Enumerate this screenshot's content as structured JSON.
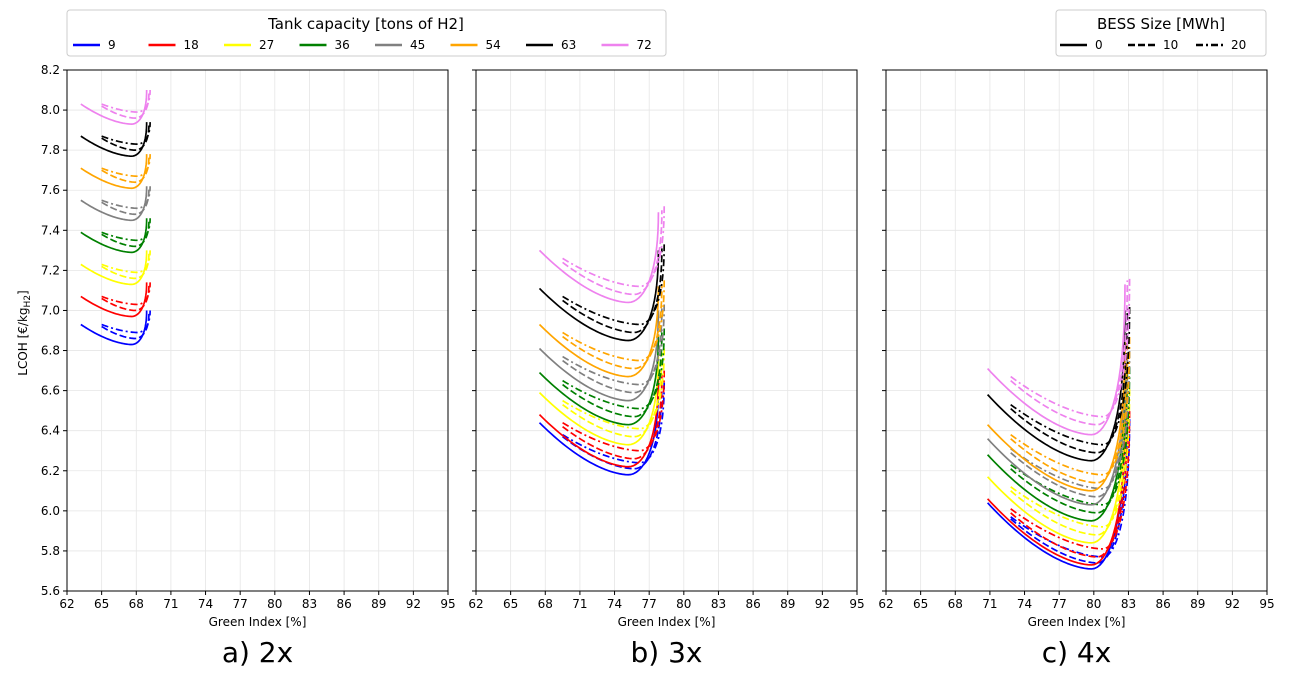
{
  "colors": [
    "#0000ff",
    "#ff0000",
    "#ffff00",
    "#008000",
    "#808080",
    "#ffa500",
    "#000000",
    "#ee82ee"
  ],
  "legend_tank": {
    "title": "Tank capacity [tons of H2]",
    "entries": [
      "9",
      "18",
      "27",
      "36",
      "45",
      "54",
      "63",
      "72"
    ]
  },
  "legend_bess": {
    "title": "BESS Size [MWh]",
    "entries": [
      {
        "label": "0",
        "style": "solid"
      },
      {
        "label": "10",
        "style": "dashed"
      },
      {
        "label": "20",
        "style": "dashdot"
      }
    ]
  },
  "chart_data": [
    {
      "type": "line",
      "panel_label": "a) 2x",
      "xlabel": "Green Index [%]",
      "ylabel": "LCOH [€/kg",
      "ylabel_sub": "H2",
      "ylabel_end": "]",
      "xlim": [
        62,
        95
      ],
      "ylim": [
        5.6,
        8.2
      ],
      "xticks": [
        "62",
        "65",
        "68",
        "71",
        "74",
        "77",
        "80",
        "83",
        "86",
        "89",
        "92",
        "95"
      ],
      "yticks": [
        "5.6",
        "5.8",
        "6.0",
        "6.2",
        "6.4",
        "6.6",
        "6.8",
        "7.0",
        "7.2",
        "7.4",
        "7.6",
        "7.8",
        "8.0",
        "8.2"
      ],
      "grid": true,
      "show_yticklabels": true,
      "series_params": {
        "bess_0": {
          "x_start": 63.2,
          "x_min": 67.6,
          "x_end": 68.9,
          "y_min": [
            6.83,
            6.97,
            7.13,
            7.29,
            7.45,
            7.61,
            7.77,
            7.93
          ],
          "start_offset": 0.1,
          "end_rise": 0.17
        },
        "bess_10": {
          "x_start": 65.0,
          "x_min": 67.9,
          "x_end": 69.1,
          "y_min": [
            6.86,
            7.0,
            7.16,
            7.32,
            7.48,
            7.64,
            7.8,
            7.96
          ],
          "start_offset": 0.06,
          "end_rise": 0.13
        },
        "bess_20": {
          "x_start": 65.0,
          "x_min": 68.1,
          "x_end": 69.2,
          "y_min": [
            6.89,
            7.03,
            7.19,
            7.35,
            7.51,
            7.67,
            7.83,
            7.99
          ],
          "start_offset": 0.04,
          "end_rise": 0.11
        }
      }
    },
    {
      "type": "line",
      "panel_label": "b) 3x",
      "xlabel": "Green Index [%]",
      "xlim": [
        62,
        95
      ],
      "ylim": [
        5.6,
        8.2
      ],
      "xticks": [
        "62",
        "65",
        "68",
        "71",
        "74",
        "77",
        "80",
        "83",
        "86",
        "89",
        "92",
        "95"
      ],
      "grid": true,
      "show_yticklabels": false,
      "series_params": {
        "bess_0": {
          "x_start": 67.5,
          "x_min": 75.2,
          "x_end": 77.8,
          "y_min": [
            6.18,
            6.22,
            6.33,
            6.43,
            6.55,
            6.67,
            6.85,
            7.04
          ],
          "start_offset": 0.26,
          "end_rise": 0.45
        },
        "bess_10": {
          "x_start": 69.5,
          "x_min": 75.7,
          "x_end": 78.1,
          "y_min": [
            6.21,
            6.26,
            6.37,
            6.47,
            6.59,
            6.71,
            6.89,
            7.08
          ],
          "start_offset": 0.16,
          "end_rise": 0.42
        },
        "bess_20": {
          "x_start": 69.5,
          "x_min": 76.2,
          "x_end": 78.3,
          "y_min": [
            6.24,
            6.3,
            6.41,
            6.51,
            6.63,
            6.75,
            6.93,
            7.12
          ],
          "start_offset": 0.14,
          "end_rise": 0.4
        }
      }
    },
    {
      "type": "line",
      "panel_label": "c) 4x",
      "xlabel": "Green Index [%]",
      "xlim": [
        62,
        95
      ],
      "ylim": [
        5.6,
        8.2
      ],
      "xticks": [
        "62",
        "65",
        "68",
        "71",
        "74",
        "77",
        "80",
        "83",
        "86",
        "89",
        "92",
        "95"
      ],
      "grid": true,
      "show_yticklabels": false,
      "series_params": {
        "bess_0": {
          "x_start": 70.8,
          "x_min": 79.8,
          "x_end": 82.7,
          "y_min": [
            5.71,
            5.73,
            5.84,
            5.95,
            6.03,
            6.1,
            6.25,
            6.38
          ],
          "start_offset": 0.33,
          "end_rise": 0.75
        },
        "bess_10": {
          "x_start": 72.8,
          "x_min": 80.3,
          "x_end": 82.9,
          "y_min": [
            5.74,
            5.77,
            5.88,
            5.99,
            6.07,
            6.14,
            6.29,
            6.43
          ],
          "start_offset": 0.22,
          "end_rise": 0.72
        },
        "bess_20": {
          "x_start": 72.8,
          "x_min": 80.8,
          "x_end": 83.1,
          "y_min": [
            5.77,
            5.81,
            5.92,
            6.03,
            6.11,
            6.18,
            6.33,
            6.47
          ],
          "start_offset": 0.2,
          "end_rise": 0.7
        }
      }
    }
  ]
}
